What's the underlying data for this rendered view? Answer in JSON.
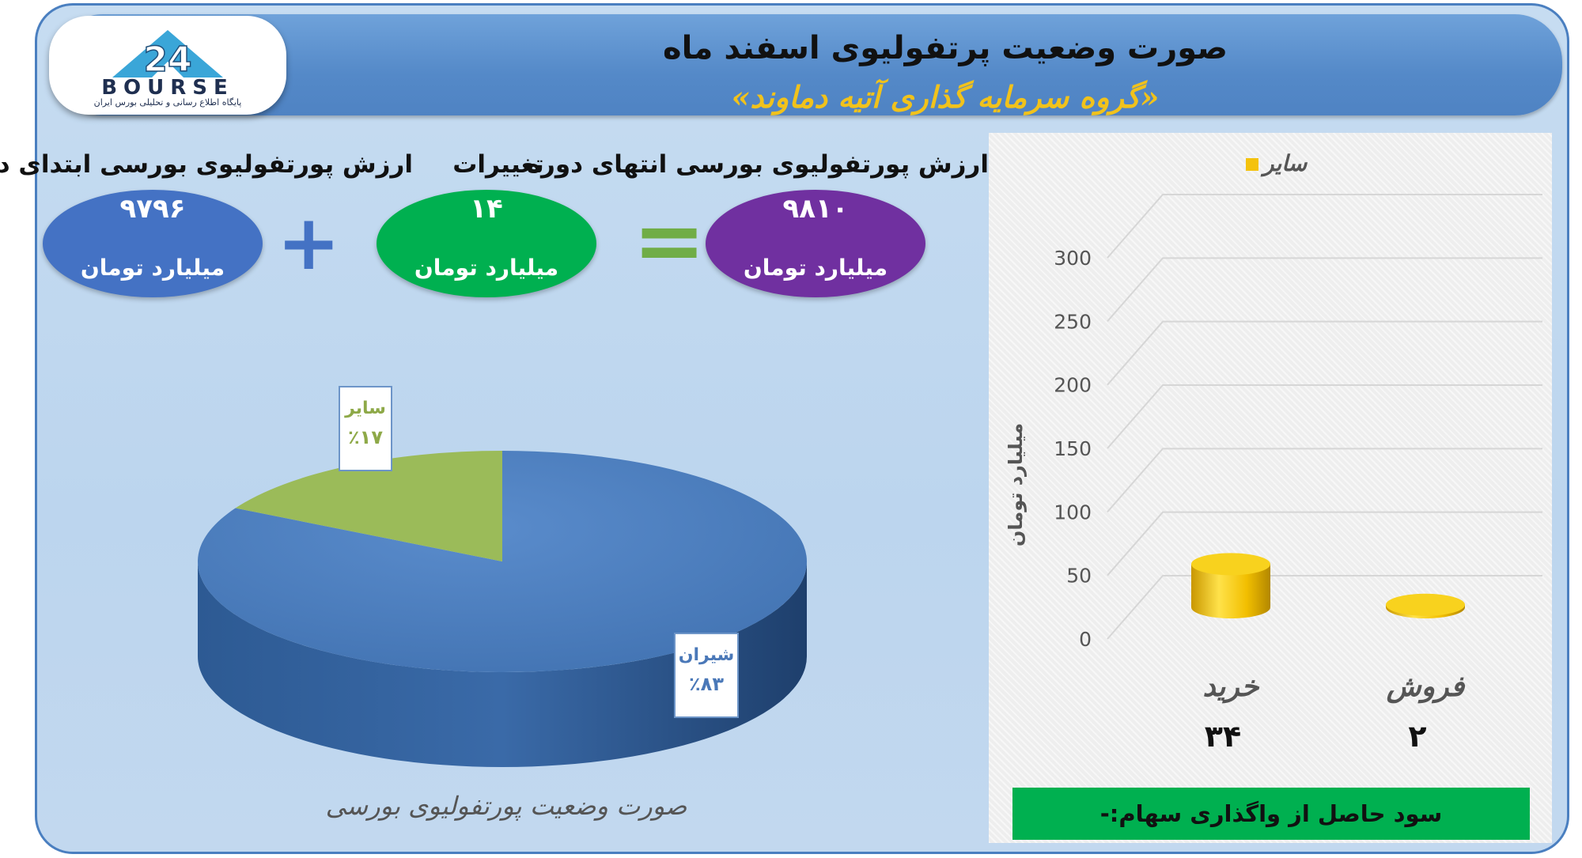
{
  "header": {
    "title": "صورت وضعیت پرتفولیوی اسفند ماه",
    "subtitle": "«گروه سرمایه گذاری آتیه دماوند»"
  },
  "logo": {
    "text": "BOURSE",
    "tagline": "پایگاه اطلاع رسانی و تحلیلی بورس ایران"
  },
  "summary": {
    "start": {
      "label": "ارزش پورتفولیوی بورسی ابتدای دوره",
      "value": "۹۷۹۶",
      "unit": "میلیارد تومان"
    },
    "change": {
      "label": "تغییرات",
      "value": "۱۴",
      "unit": "میلیارد تومان"
    },
    "end": {
      "label": "ارزش پورتفولیوی بورسی انتهای دوره",
      "value": "۹۸۱۰",
      "unit": "میلیارد تومان"
    },
    "plus": "+",
    "equals": "="
  },
  "colors": {
    "start_oval": "#4472c4",
    "change_oval": "#00b050",
    "end_oval": "#7030a0",
    "plus": "#4472c4",
    "equals": "#70ad47",
    "pie_main": "#4a7dbd",
    "pie_other": "#9bbb59",
    "bar": "#f4c20d",
    "profit_bg": "#00b050"
  },
  "chart_data": [
    {
      "type": "pie",
      "title": "صورت وضعیت پورتفولیوی بورسی",
      "slices": [
        {
          "name": "شیران",
          "value": 83,
          "label": "٪۸۳"
        },
        {
          "name": "سایر",
          "value": 17,
          "label": "٪۱۷"
        }
      ]
    },
    {
      "type": "bar",
      "legend": [
        "سایر"
      ],
      "legend_position": "top",
      "categories": [
        "خرید",
        "فروش"
      ],
      "values": [
        34,
        2
      ],
      "value_labels": [
        "۳۴",
        "۲"
      ],
      "ylabel": "میلیارد تومان",
      "ylim": [
        0,
        300
      ],
      "yticks": [
        0,
        50,
        100,
        150,
        200,
        250,
        300
      ],
      "grid": true
    }
  ],
  "footer": {
    "profit_label": "سود حاصل از واگذاری سهام:-"
  }
}
